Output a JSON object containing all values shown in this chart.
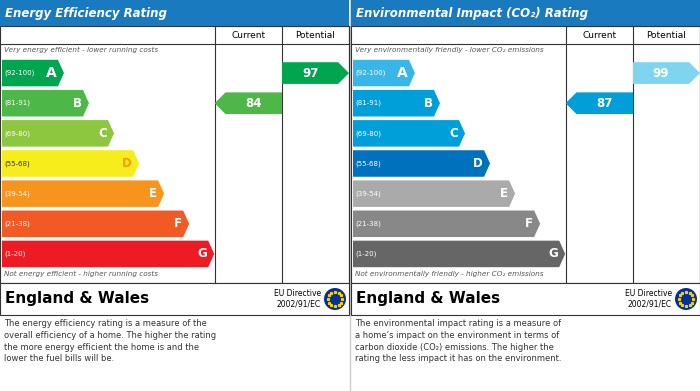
{
  "left_title": "Energy Efficiency Rating",
  "right_title": "Environmental Impact (CO₂) Rating",
  "header_bg": "#1a7abf",
  "header_text_color": "#ffffff",
  "left_top_label": "Very energy efficient - lower running costs",
  "left_bottom_label": "Not energy efficient - higher running costs",
  "right_top_label": "Very environmentally friendly - lower CO₂ emissions",
  "right_bottom_label": "Not environmentally friendly - higher CO₂ emissions",
  "bands": [
    {
      "label": "A",
      "range": "(92-100)",
      "epc_color": "#00a550",
      "co2_color": "#39b6e8"
    },
    {
      "label": "B",
      "range": "(81-91)",
      "epc_color": "#4db848",
      "co2_color": "#009fda"
    },
    {
      "label": "C",
      "range": "(69-80)",
      "epc_color": "#8dc63f",
      "co2_color": "#009fda"
    },
    {
      "label": "D",
      "range": "(55-68)",
      "epc_color": "#f7ec1c",
      "co2_color": "#0071bc"
    },
    {
      "label": "E",
      "range": "(39-54)",
      "epc_color": "#f7941d",
      "co2_color": "#aaaaaa"
    },
    {
      "label": "F",
      "range": "(21-38)",
      "epc_color": "#f15a24",
      "co2_color": "#888888"
    },
    {
      "label": "G",
      "range": "(1-20)",
      "epc_color": "#ed1c24",
      "co2_color": "#666666"
    }
  ],
  "epc_current": 84,
  "epc_current_band": "B",
  "epc_potential": 97,
  "epc_potential_band": "A",
  "co2_current": 87,
  "co2_current_band": "B",
  "co2_potential": 99,
  "co2_potential_band": "A",
  "footer_text_left": "England & Wales",
  "footer_directive": "EU Directive\n2002/91/EC",
  "epc_description": "The energy efficiency rating is a measure of the\noverall efficiency of a home. The higher the rating\nthe more energy efficient the home is and the\nlower the fuel bills will be.",
  "co2_description": "The environmental impact rating is a measure of\na home’s impact on the environment in terms of\ncarbon dioxide (CO₂) emissions. The higher the\nrating the less impact it has on the environment.",
  "col_header_current": "Current",
  "col_header_potential": "Potential"
}
